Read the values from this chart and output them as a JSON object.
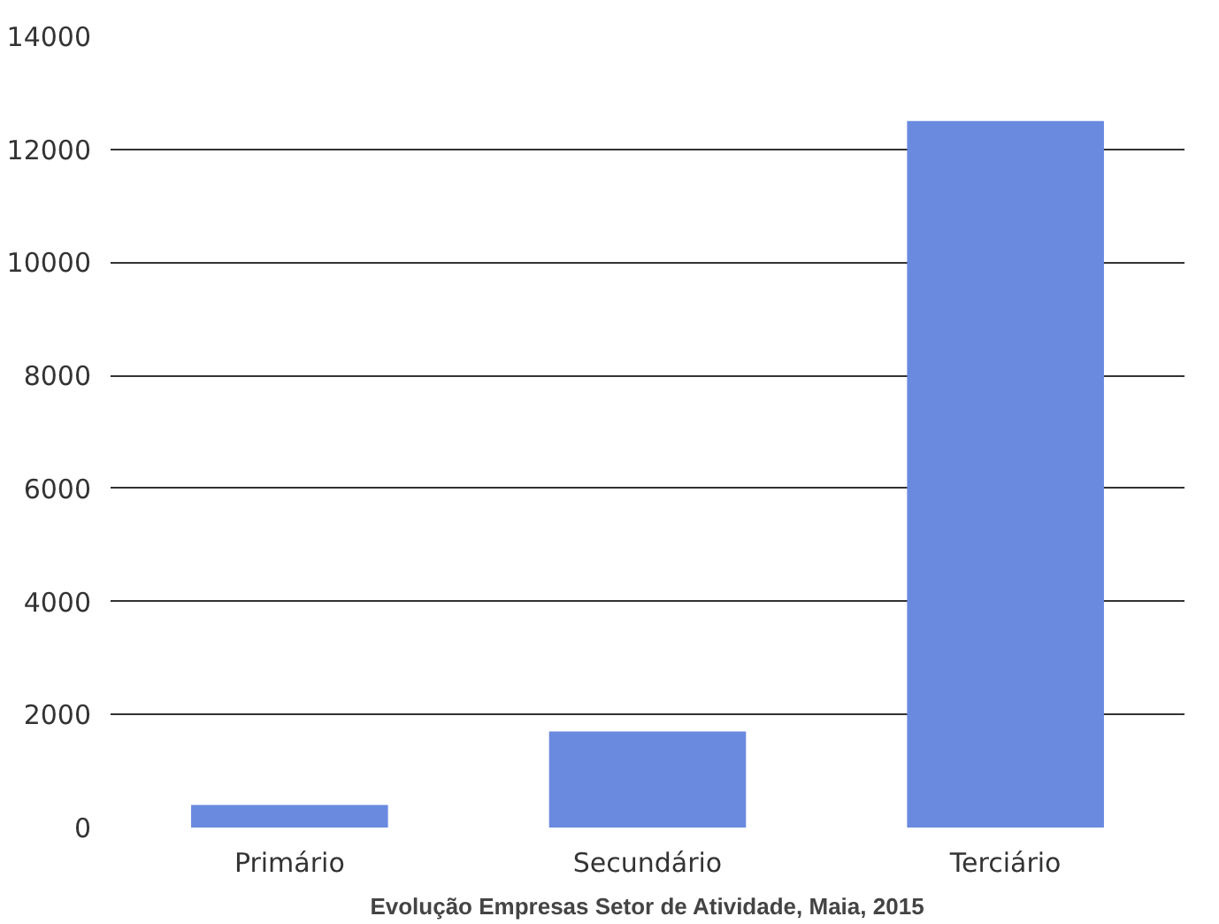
{
  "chart_data": {
    "type": "bar",
    "xlabel": "Evolução Empresas Setor de Atividade, Maia, 2015",
    "categories": [
      "Primário",
      "Secundário",
      "Terciário"
    ],
    "values": [
      400,
      1700,
      12500
    ],
    "color": "#6a8ae0",
    "ylim": [
      0,
      14000
    ],
    "yticks": [
      0,
      2000,
      4000,
      6000,
      8000,
      10000,
      12000,
      14000
    ],
    "grid": "y"
  }
}
